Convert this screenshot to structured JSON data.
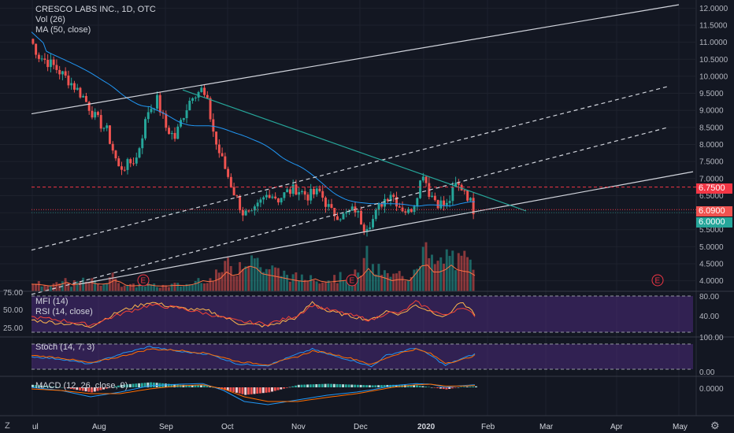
{
  "header": {
    "symbol_line": "CRESCO LABS INC., 1D, OTC",
    "vol_label": "Vol (26)",
    "ma_label": "MA (50, close)"
  },
  "panes": {
    "mfi_label": "MFI (14)",
    "rsi_label": "RSI (14, close)",
    "stoch_label": "Stoch (14, 7, 3)",
    "macd_label": "MACD (12, 26, close, 9)",
    "left_ticks": [
      "75.00",
      "50.00",
      "25.00"
    ],
    "rsi_ticks": [
      "80.00",
      "40.00"
    ],
    "stoch_ticks": [
      "100.00",
      "0.00"
    ],
    "macd_ticks": [
      "0.0000"
    ]
  },
  "price_tags": {
    "tag1": "6.7500",
    "tag2": "6.0900",
    "tag3": "6.0000",
    "tag1_color": "#f23645",
    "tag2_color": "#ef5350",
    "tag3_color": "#26a69a"
  },
  "corner": {
    "z": "Z",
    "gear_icon": "gear-icon"
  },
  "colors": {
    "up": "#26a69a",
    "down": "#ef5350",
    "ma": "#2196f3",
    "mfi": "#ffb74d",
    "rsi": "#f44336",
    "stoch_k": "#2196f3",
    "stoch_d": "#ff6d00",
    "pane_bg": "#4a2a7a"
  },
  "chart_data": {
    "type": "candlestick",
    "y_ticks": [
      "12.0000",
      "11.5000",
      "11.0000",
      "10.5000",
      "10.0000",
      "9.5000",
      "9.0000",
      "8.5000",
      "8.0000",
      "7.5000",
      "7.0000",
      "6.5000",
      "6.0000",
      "5.5000",
      "5.0000",
      "4.5000",
      "4.0000"
    ],
    "ylim": [
      3.9,
      12.1
    ],
    "x_labels": [
      "ul",
      "Aug",
      "Sep",
      "Oct",
      "Nov",
      "Dec",
      "2020",
      "Feb",
      "Mar",
      "Apr",
      "May"
    ],
    "earnings_marker": "E",
    "close_path": [
      [
        0,
        11.1
      ],
      [
        3,
        10.6
      ],
      [
        8,
        10.3
      ],
      [
        14,
        9.8
      ],
      [
        18,
        9.4
      ],
      [
        22,
        8.8
      ],
      [
        26,
        8.4
      ],
      [
        30,
        7.3
      ],
      [
        33,
        7.4
      ],
      [
        36,
        7.6
      ],
      [
        38,
        8.3
      ],
      [
        40,
        9.0
      ],
      [
        43,
        9.3
      ],
      [
        46,
        8.5
      ],
      [
        49,
        8.2
      ],
      [
        52,
        8.9
      ],
      [
        55,
        9.5
      ],
      [
        58,
        9.6
      ],
      [
        60,
        9.2
      ],
      [
        63,
        8.0
      ],
      [
        66,
        7.3
      ],
      [
        69,
        6.6
      ],
      [
        72,
        6.0
      ],
      [
        75,
        5.9
      ],
      [
        78,
        6.3
      ],
      [
        81,
        6.6
      ],
      [
        84,
        6.4
      ],
      [
        87,
        6.6
      ],
      [
        90,
        6.7
      ],
      [
        94,
        6.5
      ],
      [
        98,
        6.6
      ],
      [
        102,
        6.0
      ],
      [
        106,
        5.9
      ],
      [
        110,
        6.1
      ],
      [
        113,
        5.6
      ],
      [
        116,
        5.8
      ],
      [
        119,
        6.3
      ],
      [
        122,
        6.6
      ],
      [
        125,
        6.2
      ],
      [
        128,
        6.0
      ],
      [
        130,
        6.3
      ],
      [
        133,
        7.2
      ],
      [
        135,
        6.6
      ],
      [
        138,
        6.3
      ],
      [
        141,
        6.2
      ],
      [
        144,
        6.8
      ],
      [
        147,
        6.7
      ],
      [
        150,
        6.1
      ]
    ],
    "volume_points": [
      [
        0,
        0.15
      ],
      [
        3,
        0.14
      ],
      [
        6,
        0.1
      ],
      [
        9,
        0.12
      ],
      [
        12,
        0.2
      ],
      [
        14,
        0.13
      ],
      [
        17,
        0.17
      ],
      [
        20,
        0.2
      ],
      [
        23,
        0.14
      ],
      [
        26,
        0.17
      ],
      [
        29,
        0.3
      ],
      [
        31,
        0.13
      ],
      [
        34,
        0.1
      ],
      [
        37,
        0.11
      ],
      [
        40,
        0.13
      ],
      [
        43,
        0.09
      ],
      [
        46,
        0.1
      ],
      [
        49,
        0.12
      ],
      [
        52,
        0.11
      ],
      [
        55,
        0.14
      ],
      [
        58,
        0.25
      ],
      [
        61,
        0.21
      ],
      [
        64,
        0.32
      ],
      [
        66,
        0.5
      ],
      [
        69,
        0.35
      ],
      [
        72,
        0.6
      ],
      [
        75,
        0.7
      ],
      [
        78,
        0.45
      ],
      [
        81,
        0.4
      ],
      [
        84,
        0.35
      ],
      [
        87,
        0.3
      ],
      [
        90,
        0.25
      ],
      [
        93,
        0.22
      ],
      [
        96,
        0.3
      ],
      [
        99,
        0.2
      ],
      [
        102,
        0.22
      ],
      [
        105,
        0.25
      ],
      [
        108,
        0.27
      ],
      [
        111,
        0.3
      ],
      [
        114,
        0.6
      ],
      [
        116,
        0.4
      ],
      [
        119,
        0.35
      ],
      [
        122,
        0.25
      ],
      [
        125,
        0.3
      ],
      [
        128,
        0.25
      ],
      [
        131,
        0.55
      ],
      [
        133,
        0.8
      ],
      [
        136,
        0.5
      ],
      [
        139,
        0.5
      ],
      [
        142,
        0.7
      ],
      [
        145,
        0.5
      ],
      [
        147,
        0.55
      ],
      [
        150,
        0.4
      ]
    ],
    "mfi_points": [
      [
        0,
        40
      ],
      [
        10,
        35
      ],
      [
        20,
        30
      ],
      [
        30,
        55
      ],
      [
        40,
        70
      ],
      [
        50,
        60
      ],
      [
        60,
        55
      ],
      [
        70,
        35
      ],
      [
        80,
        30
      ],
      [
        90,
        45
      ],
      [
        95,
        70
      ],
      [
        100,
        55
      ],
      [
        110,
        45
      ],
      [
        115,
        40
      ],
      [
        120,
        55
      ],
      [
        125,
        50
      ],
      [
        130,
        65
      ],
      [
        135,
        55
      ],
      [
        140,
        45
      ],
      [
        145,
        70
      ],
      [
        150,
        50
      ]
    ],
    "rsi_points": [
      [
        0,
        45
      ],
      [
        10,
        40
      ],
      [
        20,
        32
      ],
      [
        30,
        50
      ],
      [
        40,
        65
      ],
      [
        50,
        60
      ],
      [
        60,
        50
      ],
      [
        70,
        38
      ],
      [
        80,
        34
      ],
      [
        90,
        48
      ],
      [
        95,
        65
      ],
      [
        100,
        58
      ],
      [
        110,
        46
      ],
      [
        115,
        40
      ],
      [
        120,
        52
      ],
      [
        125,
        52
      ],
      [
        130,
        70
      ],
      [
        135,
        58
      ],
      [
        140,
        47
      ],
      [
        145,
        62
      ],
      [
        150,
        48
      ]
    ],
    "stoch_k_points": [
      [
        0,
        50
      ],
      [
        10,
        40
      ],
      [
        20,
        20
      ],
      [
        30,
        60
      ],
      [
        40,
        90
      ],
      [
        50,
        70
      ],
      [
        60,
        60
      ],
      [
        70,
        20
      ],
      [
        80,
        15
      ],
      [
        90,
        60
      ],
      [
        95,
        80
      ],
      [
        100,
        60
      ],
      [
        110,
        30
      ],
      [
        115,
        10
      ],
      [
        120,
        55
      ],
      [
        125,
        70
      ],
      [
        130,
        85
      ],
      [
        135,
        55
      ],
      [
        140,
        15
      ],
      [
        145,
        40
      ],
      [
        150,
        60
      ]
    ],
    "stoch_d_points": [
      [
        0,
        55
      ],
      [
        10,
        45
      ],
      [
        20,
        25
      ],
      [
        30,
        50
      ],
      [
        40,
        80
      ],
      [
        50,
        75
      ],
      [
        60,
        62
      ],
      [
        70,
        30
      ],
      [
        80,
        18
      ],
      [
        90,
        50
      ],
      [
        95,
        72
      ],
      [
        100,
        65
      ],
      [
        110,
        38
      ],
      [
        115,
        18
      ],
      [
        120,
        45
      ],
      [
        125,
        65
      ],
      [
        130,
        80
      ],
      [
        135,
        62
      ],
      [
        140,
        25
      ],
      [
        145,
        35
      ],
      [
        150,
        55
      ]
    ],
    "macd_points": [
      [
        0,
        0.0
      ],
      [
        10,
        -0.1
      ],
      [
        20,
        -0.3
      ],
      [
        30,
        -0.15
      ],
      [
        40,
        0.05
      ],
      [
        50,
        0.1
      ],
      [
        58,
        0.12
      ],
      [
        65,
        -0.1
      ],
      [
        72,
        -0.45
      ],
      [
        80,
        -0.55
      ],
      [
        90,
        -0.4
      ],
      [
        100,
        -0.25
      ],
      [
        110,
        -0.15
      ],
      [
        115,
        -0.08
      ],
      [
        122,
        0.05
      ],
      [
        130,
        0.12
      ],
      [
        135,
        0.1
      ],
      [
        140,
        0.0
      ],
      [
        145,
        0.05
      ],
      [
        150,
        0.08
      ]
    ],
    "signal_points": [
      [
        0,
        -0.05
      ],
      [
        10,
        -0.1
      ],
      [
        20,
        -0.2
      ],
      [
        30,
        -0.2
      ],
      [
        40,
        -0.05
      ],
      [
        50,
        0.05
      ],
      [
        58,
        0.08
      ],
      [
        65,
        -0.05
      ],
      [
        72,
        -0.3
      ],
      [
        80,
        -0.45
      ],
      [
        90,
        -0.45
      ],
      [
        100,
        -0.32
      ],
      [
        110,
        -0.2
      ],
      [
        115,
        -0.12
      ],
      [
        122,
        0.0
      ],
      [
        130,
        0.08
      ],
      [
        135,
        0.1
      ],
      [
        140,
        0.04
      ],
      [
        145,
        0.04
      ],
      [
        150,
        0.06
      ]
    ]
  }
}
